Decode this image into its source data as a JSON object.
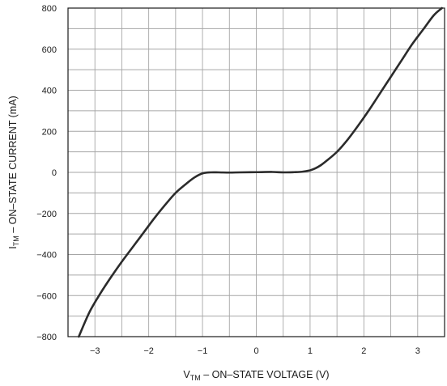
{
  "chart_data": {
    "type": "line",
    "xlabel": {
      "main": "V",
      "sub": "TM",
      "rest": " – ON–STATE VOLTAGE (V)"
    },
    "ylabel": {
      "main": "I",
      "sub": "TM",
      "rest": " – ON–STATE CURRENT (mA)"
    },
    "xlim": [
      -3.5,
      3.5
    ],
    "ylim": [
      -800,
      800
    ],
    "x_ticks": [
      -3,
      -2,
      -1,
      0,
      1,
      2,
      3
    ],
    "x_tick_labels": [
      "−3",
      "−2",
      "−1",
      "0",
      "1",
      "2",
      "3"
    ],
    "y_ticks": [
      800,
      600,
      400,
      200,
      0,
      -200,
      -400,
      -600,
      -800
    ],
    "y_tick_labels": [
      "800",
      "600",
      "400",
      "200",
      "0",
      "−200",
      "−400",
      "−600",
      "−800"
    ],
    "x_grid_step": 0.5,
    "y_grid_step": 100,
    "grid": true,
    "series": [
      {
        "color": "#2b2b2b",
        "points": [
          [
            -3.3,
            -800
          ],
          [
            -3.1,
            -680
          ],
          [
            -2.9,
            -590
          ],
          [
            -2.7,
            -510
          ],
          [
            -2.5,
            -435
          ],
          [
            -2.3,
            -365
          ],
          [
            -2.1,
            -295
          ],
          [
            -1.9,
            -225
          ],
          [
            -1.7,
            -160
          ],
          [
            -1.5,
            -100
          ],
          [
            -1.3,
            -55
          ],
          [
            -1.15,
            -25
          ],
          [
            -1.0,
            -5
          ],
          [
            -0.85,
            0
          ],
          [
            -0.7,
            0
          ],
          [
            -0.5,
            -1
          ],
          [
            -0.3,
            0
          ],
          [
            0.0,
            1
          ],
          [
            0.3,
            2
          ],
          [
            0.5,
            0
          ],
          [
            0.7,
            1
          ],
          [
            0.85,
            3
          ],
          [
            1.0,
            10
          ],
          [
            1.1,
            20
          ],
          [
            1.2,
            35
          ],
          [
            1.3,
            55
          ],
          [
            1.5,
            100
          ],
          [
            1.7,
            160
          ],
          [
            1.9,
            230
          ],
          [
            2.1,
            305
          ],
          [
            2.3,
            385
          ],
          [
            2.5,
            465
          ],
          [
            2.7,
            545
          ],
          [
            2.9,
            625
          ],
          [
            3.1,
            695
          ],
          [
            3.3,
            765
          ],
          [
            3.45,
            800
          ]
        ]
      }
    ]
  }
}
